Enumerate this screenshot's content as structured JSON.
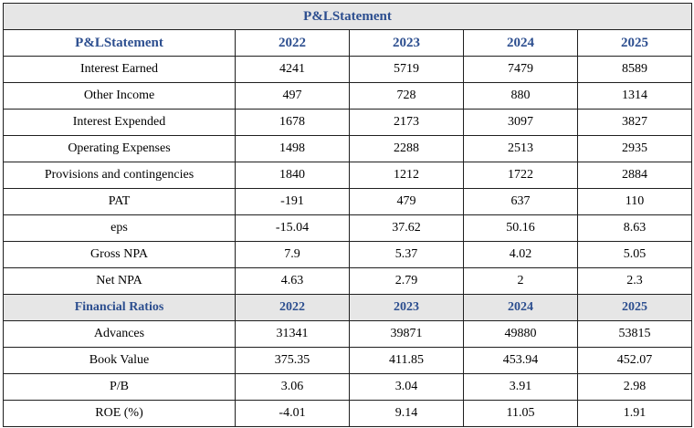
{
  "title": "P&LStatement",
  "pl_header": [
    "P&LStatement",
    "2022",
    "2023",
    "2024",
    "2025"
  ],
  "pl_rows": [
    [
      "Interest Earned",
      "4241",
      "5719",
      "7479",
      "8589"
    ],
    [
      "Other Income",
      "497",
      "728",
      "880",
      "1314"
    ],
    [
      "Interest Expended",
      "1678",
      "2173",
      "3097",
      "3827"
    ],
    [
      "Operating Expenses",
      "1498",
      "2288",
      "2513",
      "2935"
    ],
    [
      "Provisions and contingencies",
      "1840",
      "1212",
      "1722",
      "2884"
    ],
    [
      "PAT",
      "-191",
      "479",
      "637",
      "110"
    ],
    [
      "eps",
      "-15.04",
      "37.62",
      "50.16",
      "8.63"
    ],
    [
      "Gross NPA",
      "7.9",
      "5.37",
      "4.02",
      "5.05"
    ],
    [
      "Net NPA",
      "4.63",
      "2.79",
      "2",
      "2.3"
    ]
  ],
  "ratio_header": [
    "Financial Ratios",
    "2022",
    "2023",
    "2024",
    "2025"
  ],
  "ratio_rows": [
    [
      "Advances",
      "31341",
      "39871",
      "49880",
      "53815"
    ],
    [
      "Book Value",
      "375.35",
      "411.85",
      "453.94",
      "452.07"
    ],
    [
      "P/B",
      "3.06",
      "3.04",
      "3.91",
      "2.98"
    ],
    [
      "ROE (%)",
      "-4.01",
      "9.14",
      "11.05",
      "1.91"
    ]
  ],
  "colors": {
    "header_text": "#2c4e8f",
    "band_bg": "#e6e6e6"
  }
}
